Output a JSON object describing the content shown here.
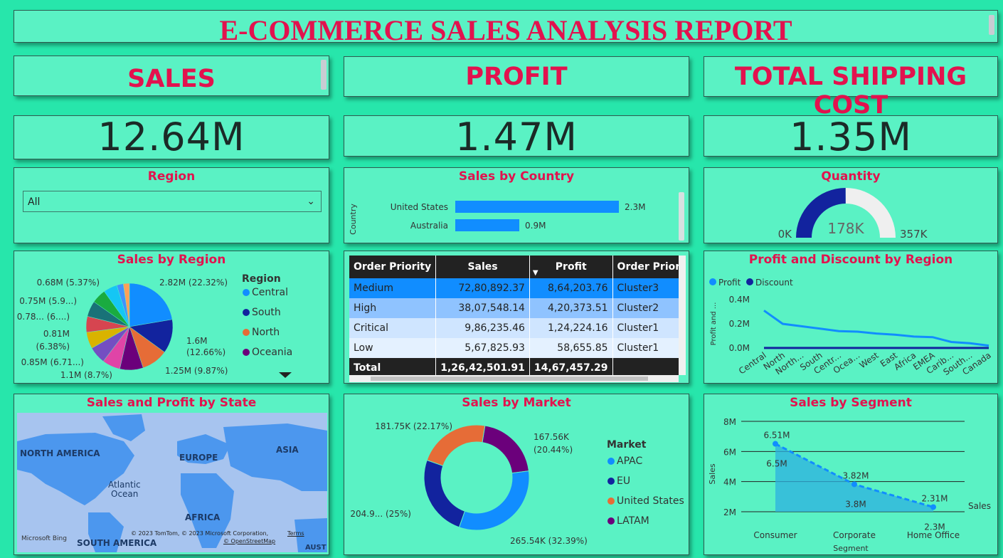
{
  "report_title": "E-COMMERCE SALES ANALYSIS REPORT",
  "kpis": {
    "sales": {
      "label": "SALES",
      "value": "12.64M"
    },
    "profit": {
      "label": "PROFIT",
      "value": "1.47M"
    },
    "shipping": {
      "label": "TOTAL SHIPPING COST",
      "value": "1.35M"
    }
  },
  "region_slicer": {
    "title": "Region",
    "selected": "All"
  },
  "colors": {
    "accent": "#e2124e",
    "background": "#27e6ab",
    "panel": "#5af2c4",
    "bar": "#118dff",
    "dark_blue": "#12239e",
    "orange": "#e66c37",
    "purple": "#6b007b"
  },
  "chart_data": [
    {
      "id": "sales_by_country",
      "type": "bar",
      "title": "Sales by Country",
      "ylabel": "Country",
      "categories": [
        "United States",
        "Australia"
      ],
      "values": [
        2.3,
        0.9
      ],
      "value_labels": [
        "2.3M",
        "0.9M"
      ],
      "xlim": [
        0,
        2.6
      ]
    },
    {
      "id": "quantity_gauge",
      "type": "gauge",
      "title": "Quantity",
      "value": 178,
      "min": 0,
      "max": 357,
      "value_label": "178K",
      "min_label": "0K",
      "max_label": "357K"
    },
    {
      "id": "sales_by_region",
      "type": "pie",
      "title": "Sales by Region",
      "legend_title": "Region",
      "legend": [
        "Central",
        "South",
        "North",
        "Oceania"
      ],
      "slices": [
        {
          "value": 2.82,
          "label": "2.82M (22.32%)",
          "color": "#118dff"
        },
        {
          "value": 1.6,
          "label": "1.6M (12.66%)",
          "color": "#12239e"
        },
        {
          "value": 1.25,
          "label": "1.25M (9.87%)",
          "color": "#e66c37"
        },
        {
          "value": 1.1,
          "label": "1.1M (8.7%)",
          "color": "#6b007b"
        },
        {
          "value": 0.85,
          "label": "0.85M (6.71...)",
          "color": "#e044a7"
        },
        {
          "value": 0.81,
          "label": "0.81M (6.38%)",
          "color": "#744ec2"
        },
        {
          "value": 0.78,
          "label": "0.78... (6....)",
          "color": "#d9b300"
        },
        {
          "value": 0.75,
          "label": "0.75M (5.9...)",
          "color": "#d64550"
        },
        {
          "value": 0.74,
          "label": "",
          "color": "#197278"
        },
        {
          "value": 0.68,
          "label": "0.68M (5.37%)",
          "color": "#1aab40"
        },
        {
          "value": 0.65,
          "label": "",
          "color": "#15c6f4"
        },
        {
          "value": 0.31,
          "label": "",
          "color": "#4092ff"
        },
        {
          "value": 0.29,
          "label": "",
          "color": "#ffa058"
        }
      ]
    },
    {
      "id": "profit_discount_by_region",
      "type": "line",
      "title": "Profit and Discount by Region",
      "ylabel": "Profit and ...",
      "legend": [
        "Profit",
        "Discount"
      ],
      "categories": [
        "Central",
        "North",
        "North...",
        "South",
        "Centr...",
        "Ocea...",
        "West",
        "East",
        "Africa",
        "EMEA",
        "Carib...",
        "South...",
        "Canada"
      ],
      "y_ticks": [
        "0.0M",
        "0.2M",
        "0.4M"
      ],
      "ylim": [
        0,
        0.4
      ],
      "series": [
        {
          "name": "Profit",
          "values": [
            0.31,
            0.2,
            0.18,
            0.16,
            0.14,
            0.135,
            0.12,
            0.11,
            0.095,
            0.09,
            0.05,
            0.04,
            0.02
          ]
        },
        {
          "name": "Discount",
          "values": [
            0.001,
            0.001,
            0.001,
            0.001,
            0.001,
            0.001,
            0.001,
            0.001,
            0.001,
            0.001,
            0.001,
            0.001,
            0.001
          ]
        }
      ]
    },
    {
      "id": "sales_by_market",
      "type": "pie",
      "title": "Sales by Market",
      "legend_title": "Market",
      "legend": [
        "APAC",
        "EU",
        "United States",
        "LATAM"
      ],
      "slices": [
        {
          "value": 167.56,
          "label_a": "167.56K",
          "label_b": "(20.44%)",
          "color": "#6b007b"
        },
        {
          "value": 265.54,
          "label_a": "265.54K (32.39%)",
          "label_b": "",
          "color": "#118dff"
        },
        {
          "value": 204.9,
          "label_a": "204.9... (25%)",
          "label_b": "",
          "color": "#12239e"
        },
        {
          "value": 181.75,
          "label_a": "181.75K (22.17%)",
          "label_b": "",
          "color": "#e66c37"
        }
      ]
    },
    {
      "id": "sales_by_segment",
      "type": "area",
      "title": "Sales by Segment",
      "xlabel": "Segment",
      "ylabel": "Sales",
      "legend": [
        "Sales"
      ],
      "categories": [
        "Consumer",
        "Corporate",
        "Home Office"
      ],
      "values": [
        6.51,
        3.82,
        2.31
      ],
      "point_labels": [
        "6.51M",
        "3.82M",
        "2.31M"
      ],
      "inner_labels": [
        "6.5M",
        "3.8M",
        "2.3M"
      ],
      "y_ticks": [
        "2M",
        "4M",
        "6M",
        "8M"
      ],
      "ylim": [
        2,
        8
      ]
    }
  ],
  "order_table": {
    "headers": [
      "Order Priority",
      "Sales",
      "Profit",
      "Order Priority (clus"
    ],
    "rows": [
      [
        "Medium",
        "72,80,892.37",
        "8,64,203.76",
        "Cluster3"
      ],
      [
        "High",
        "38,07,548.14",
        "4,20,373.51",
        "Cluster2"
      ],
      [
        "Critical",
        "9,86,235.46",
        "1,24,224.16",
        "Cluster1"
      ],
      [
        "Low",
        "5,67,825.93",
        "58,655.85",
        "Cluster1"
      ]
    ],
    "total": [
      "Total",
      "1,26,42,501.91",
      "14,67,457.29",
      ""
    ]
  },
  "map": {
    "title": "Sales and Profit by State",
    "labels": {
      "na": "NORTH AMERICA",
      "eu": "EUROPE",
      "asia": "ASIA",
      "ocean1": "Atlantic",
      "ocean2": "Ocean",
      "africa": "AFRICA",
      "sa": "SOUTH AMERICA",
      "aust": "AUST"
    },
    "attribution": "© 2023 TomTom, © 2023 Microsoft Corporation,",
    "terms": "Terms",
    "osm": "© OpenStreetMap",
    "bing": "Microsoft Bing"
  }
}
